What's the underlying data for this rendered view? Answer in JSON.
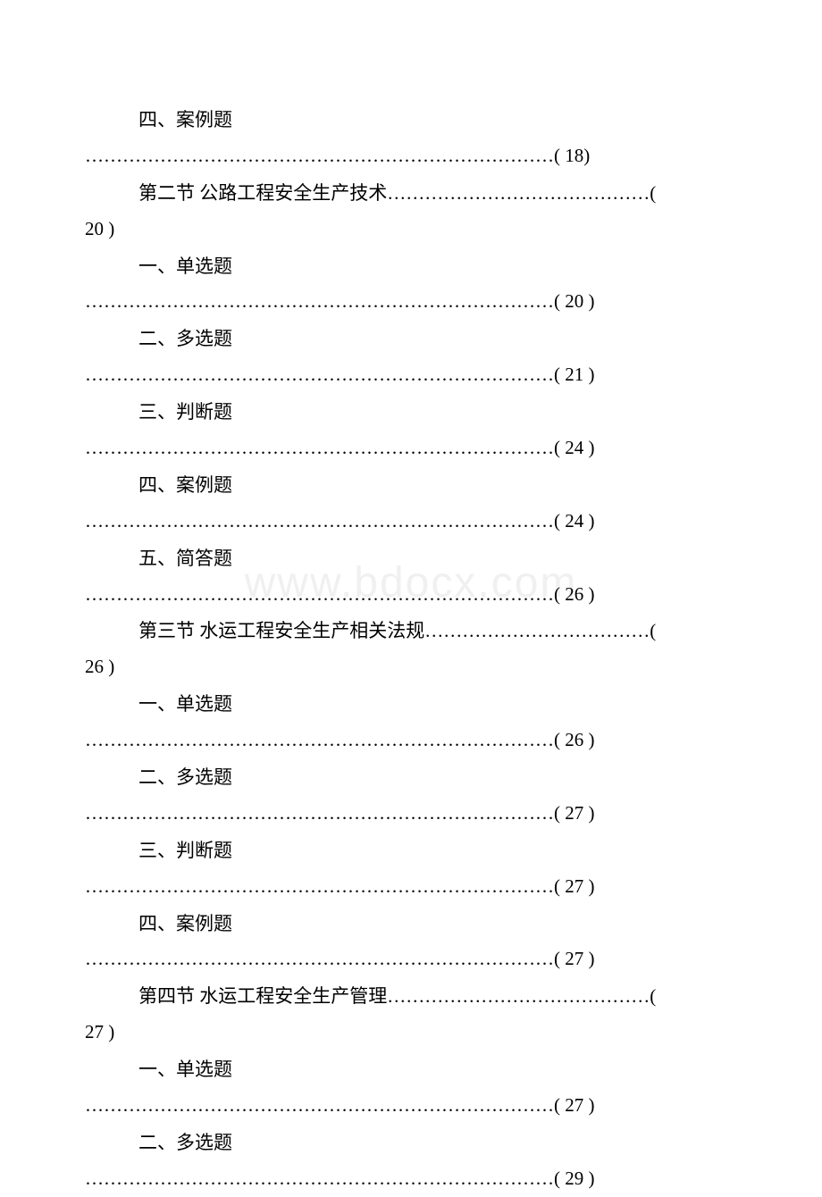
{
  "watermark": "www.bdocx.com",
  "entries": [
    {
      "line1": "四、案例题",
      "line2": "…………………………………………………………………( 18)"
    },
    {
      "line1": "第二节 公路工程安全生产技术……………………………………(",
      "line2_prefix": "20 )"
    },
    {
      "line1": "一、单选题",
      "line2": "…………………………………………………………………( 20 )"
    },
    {
      "line1": "二、多选题",
      "line2": "…………………………………………………………………( 21 )"
    },
    {
      "line1": "三、判断题",
      "line2": "…………………………………………………………………( 24 )"
    },
    {
      "line1": "四、案例题",
      "line2": "…………………………………………………………………( 24 )"
    },
    {
      "line1": "五、简答题",
      "line2": "…………………………………………………………………( 26 )"
    },
    {
      "line1": "第三节 水运工程安全生产相关法规………………………………(",
      "line2_prefix": "26 )"
    },
    {
      "line1": "一、单选题",
      "line2": "…………………………………………………………………( 26 )"
    },
    {
      "line1": "二、多选题",
      "line2": "…………………………………………………………………( 27 )"
    },
    {
      "line1": "三、判断题",
      "line2": "…………………………………………………………………( 27 )"
    },
    {
      "line1": "四、案例题",
      "line2": "…………………………………………………………………( 27 )"
    },
    {
      "line1": "第四节 水运工程安全生产管理……………………………………(",
      "line2_prefix": "27 )"
    },
    {
      "line1": "一、单选题",
      "line2": "…………………………………………………………………( 27 )"
    },
    {
      "line1": "二、多选题",
      "line2": "…………………………………………………………………( 29 )"
    }
  ]
}
